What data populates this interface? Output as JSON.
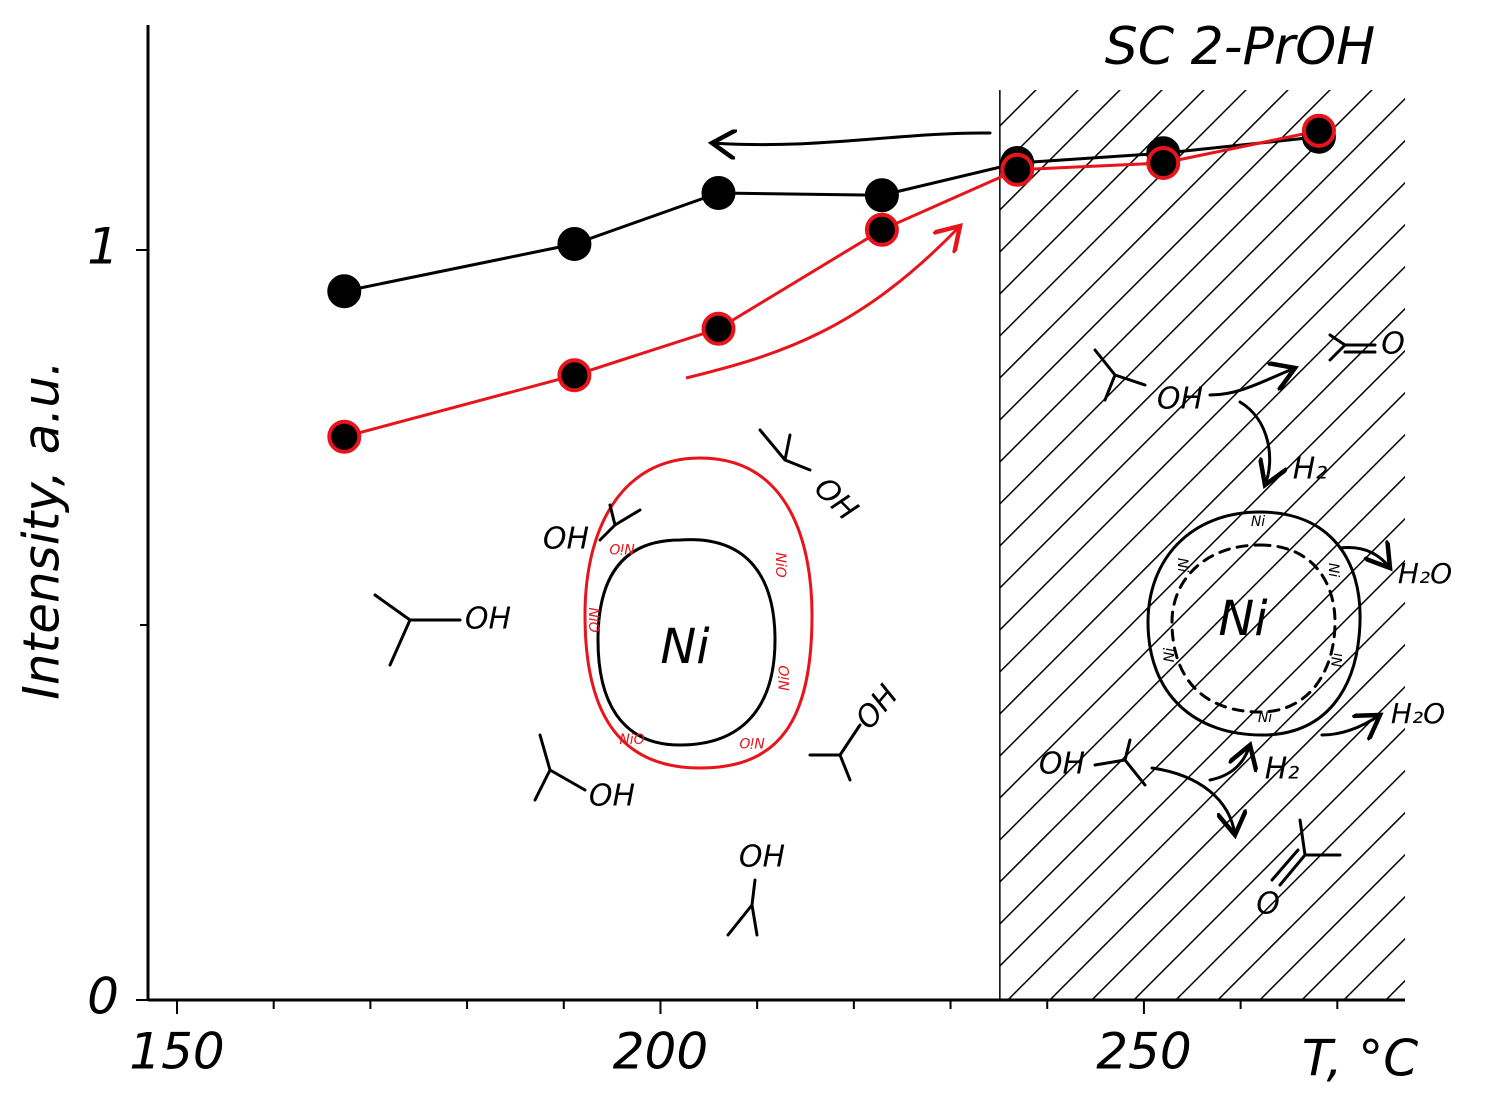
{
  "chart_data": {
    "type": "line",
    "title": "SC 2-PrOH",
    "x_label": "T, °C",
    "y_label": "Intensity, a.u.",
    "x": [
      167.3,
      191.1,
      206.0,
      222.9,
      236.9,
      252.0,
      268.1
    ],
    "series": [
      {
        "color": "#000000",
        "marker_fill": "#000000",
        "values": [
          0.945,
          1.008,
          1.076,
          1.073,
          1.116,
          1.129,
          1.151
        ]
      },
      {
        "color": "#e8141b",
        "marker_fill": "#000000",
        "values": [
          0.751,
          0.833,
          0.895,
          1.027,
          1.107,
          1.116,
          1.159
        ]
      }
    ],
    "xlim": [
      147,
      277
    ],
    "ylim": [
      0,
      1.3
    ],
    "xticks": [
      150,
      200,
      250
    ],
    "minor_xticks": [
      160,
      170,
      180,
      190,
      210,
      220,
      230,
      240,
      260,
      270
    ],
    "yticks": [
      0,
      1
    ],
    "minor_yticks": [
      0.5
    ],
    "region_start": 235.1,
    "annotations": [
      "Ni",
      "NiO",
      "NiO",
      "NiO",
      "NiO",
      "NiO",
      "NiO",
      "Ni",
      "Ni",
      "Ni",
      "Ni",
      "Ni",
      "Ni",
      "Ni",
      "OH",
      "O",
      "H₂",
      "H₂O",
      "H₂O",
      "OH",
      "H₂",
      "O",
      "OH",
      "OH",
      "OH",
      "OH",
      "OH",
      "OH"
    ]
  }
}
